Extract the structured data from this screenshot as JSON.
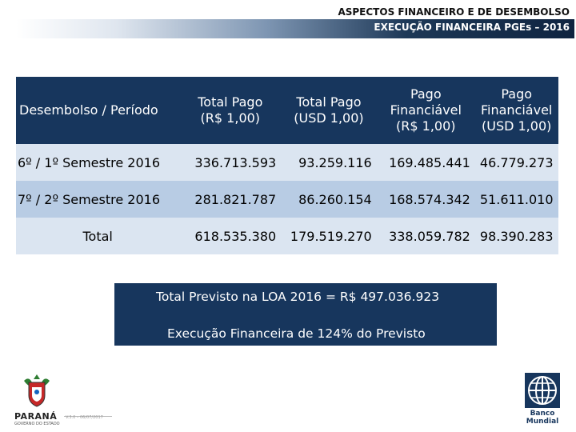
{
  "header": {
    "title": "ASPECTOS FINANCEIRO E DE DESEMBOLSO",
    "subtitle": "EXECUÇÃO FINANCEIRA PGEs – 2016"
  },
  "table": {
    "columns": [
      {
        "line1": "Desembolso / Período",
        "line2": "",
        "line3": ""
      },
      {
        "line1": "Total Pago",
        "line2": "(R$ 1,00)",
        "line3": ""
      },
      {
        "line1": "Total Pago",
        "line2": "(USD 1,00)",
        "line3": ""
      },
      {
        "line1": "Pago",
        "line2": "Financiável",
        "line3": "(R$ 1,00)"
      },
      {
        "line1": "Pago",
        "line2": "Financiável",
        "line3": "(USD 1,00)"
      }
    ],
    "rows": [
      {
        "label": "6º / 1º Semestre 2016",
        "values": [
          "336.713.593",
          "93.259.116",
          "169.485.441",
          "46.779.273"
        ]
      },
      {
        "label": "7º / 2º Semestre 2016",
        "values": [
          "281.821.787",
          "86.260.154",
          "168.574.342",
          "51.611.010"
        ]
      },
      {
        "label": "Total",
        "values": [
          "618.535.380",
          "179.519.270",
          "338.059.782",
          "98.390.283"
        ]
      }
    ]
  },
  "summary": {
    "line1": "Total Previsto na LOA 2016 = R$ 497.036.923",
    "line2": "Execução Financeira de 124% do Previsto"
  },
  "footer": {
    "left_logo_word": "PARANÁ",
    "left_logo_sub": "GOVERNO DO ESTADO",
    "version": "V.3.0 – 06/07/2017",
    "right_logo_line1": "Banco",
    "right_logo_line2": "Mundial"
  }
}
